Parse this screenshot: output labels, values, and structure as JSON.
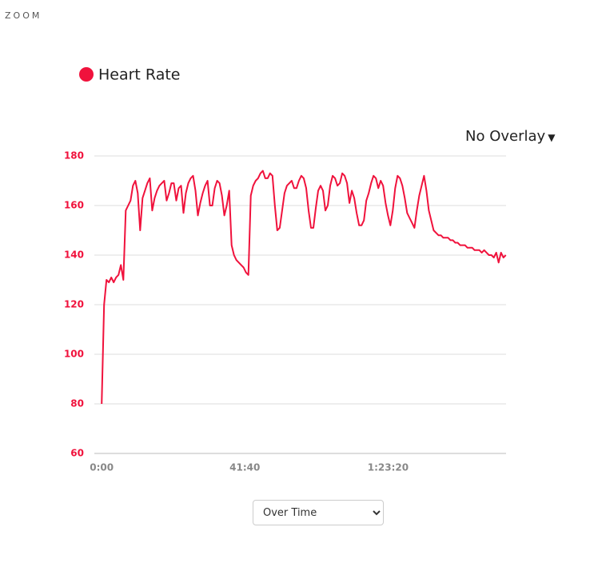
{
  "header": {
    "zoom": "ZOOM"
  },
  "overlay": "No Overlay",
  "view_select": "Over Time",
  "chart_data": {
    "type": "line",
    "x": [
      0,
      42,
      84,
      126,
      168,
      210,
      252,
      294,
      336,
      378,
      420,
      462,
      504,
      546,
      588,
      630,
      672,
      714,
      756,
      798,
      840,
      882,
      924,
      966,
      1008,
      1050,
      1092,
      1134,
      1176,
      1218,
      1260,
      1302,
      1344,
      1386,
      1428,
      1470,
      1512,
      1554,
      1596,
      1638,
      1680,
      1722,
      1764,
      1806,
      1848,
      1890,
      1932,
      1974,
      2016,
      2058,
      2100,
      2142,
      2184,
      2226,
      2268,
      2310,
      2352,
      2394,
      2436,
      2478,
      2520,
      2562,
      2604,
      2646,
      2688,
      2730,
      2772,
      2814,
      2856,
      2898,
      2940,
      2982,
      3024,
      3066,
      3108,
      3150,
      3192,
      3234,
      3276,
      3318,
      3360,
      3402,
      3444,
      3486,
      3528,
      3570,
      3612,
      3654,
      3696,
      3738,
      3780,
      3822,
      3864,
      3906,
      3948,
      3990,
      4032,
      4074,
      4116,
      4158,
      4200,
      4242,
      4284,
      4326,
      4368,
      4410,
      4452,
      4494,
      4536,
      4578,
      4620,
      4662,
      4704,
      4746,
      4788,
      4830,
      4872,
      4914,
      4956,
      4998,
      5040,
      5082,
      5124,
      5166,
      5208,
      5250,
      5292,
      5334,
      5376,
      5418,
      5460,
      5502,
      5544,
      5586,
      5628,
      5670,
      5712,
      5754,
      5796,
      5838,
      5880,
      5922,
      5964,
      6006,
      6048,
      6090,
      6132,
      6174,
      6216,
      6258,
      6300,
      6342,
      6384,
      6426,
      6468,
      6510,
      6552,
      6594,
      6636,
      6678,
      6720,
      6762,
      6804,
      6846,
      6888,
      6930,
      6972,
      7014,
      7056
    ],
    "series": [
      {
        "name": "Heart Rate",
        "color": "#f0123c",
        "values": [
          80,
          120,
          130,
          129,
          131,
          129,
          131,
          132,
          136,
          130,
          158,
          160,
          162,
          168,
          170,
          165,
          150,
          163,
          166,
          169,
          171,
          158,
          163,
          166,
          168,
          169,
          170,
          162,
          165,
          169,
          169,
          162,
          167,
          168,
          157,
          165,
          169,
          171,
          172,
          166,
          156,
          161,
          165,
          168,
          170,
          160,
          160,
          167,
          170,
          169,
          164,
          156,
          160,
          166,
          144,
          140,
          138,
          137,
          136,
          135,
          133,
          132,
          164,
          168,
          170,
          171,
          173,
          174,
          171,
          171,
          173,
          172,
          160,
          150,
          151,
          158,
          165,
          168,
          169,
          170,
          167,
          167,
          170,
          172,
          171,
          167,
          158,
          151,
          151,
          159,
          166,
          168,
          166,
          158,
          160,
          168,
          172,
          171,
          168,
          169,
          173,
          172,
          169,
          161,
          166,
          163,
          157,
          152,
          152,
          154,
          162,
          165,
          169,
          172,
          171,
          167,
          170,
          168,
          161,
          156,
          152,
          158,
          167,
          172,
          171,
          168,
          163,
          157,
          155,
          153,
          151,
          158,
          164,
          168,
          172,
          166,
          158,
          154,
          150,
          149,
          148,
          148,
          147,
          147,
          147,
          146,
          146,
          145,
          145,
          144,
          144,
          144,
          143,
          143,
          143,
          142,
          142,
          142,
          141,
          142,
          141,
          140,
          140,
          139,
          141,
          137,
          141,
          139,
          140
        ]
      }
    ],
    "xlim": [
      -128,
      7060
    ],
    "xticks": [
      {
        "value": 0,
        "label": "0:00"
      },
      {
        "value": 2500,
        "label": "41:40"
      },
      {
        "value": 5000,
        "label": "1:23:20"
      }
    ],
    "ylim": [
      60,
      180
    ],
    "yticks": [
      60,
      80,
      100,
      120,
      140,
      160,
      180
    ],
    "grid": true
  }
}
